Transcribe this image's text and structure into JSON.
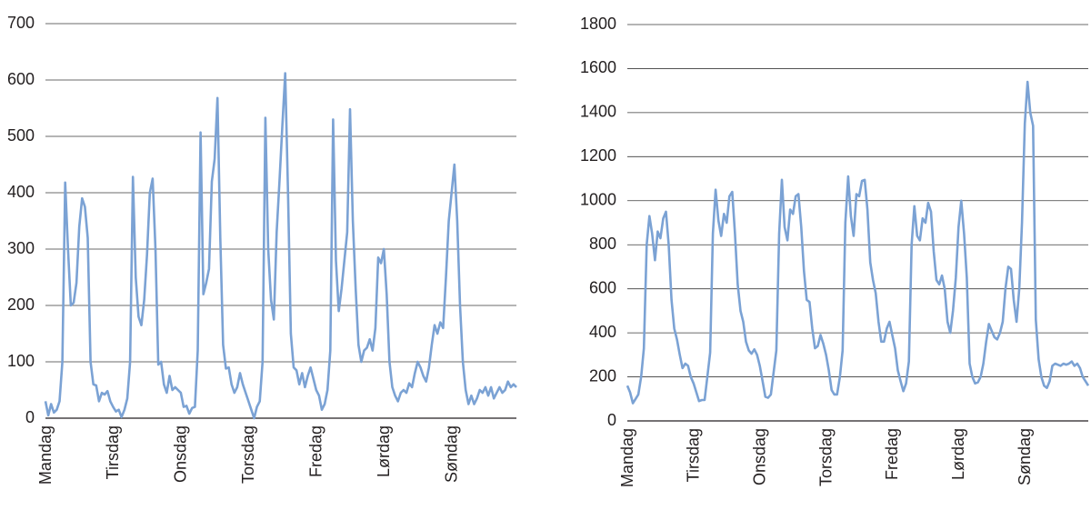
{
  "chart_data": [
    {
      "type": "line",
      "categories": [
        "Mandag",
        null,
        null,
        null,
        null,
        null,
        null,
        null,
        null,
        null,
        null,
        null,
        null,
        null,
        null,
        null,
        null,
        null,
        null,
        null,
        null,
        null,
        null,
        null,
        "Tirsdag",
        null,
        null,
        null,
        null,
        null,
        null,
        null,
        null,
        null,
        null,
        null,
        null,
        null,
        null,
        null,
        null,
        null,
        null,
        null,
        null,
        null,
        null,
        null,
        "Onsdag",
        null,
        null,
        null,
        null,
        null,
        null,
        null,
        null,
        null,
        null,
        null,
        null,
        null,
        null,
        null,
        null,
        null,
        null,
        null,
        null,
        null,
        null,
        null,
        "Torsdag",
        null,
        null,
        null,
        null,
        null,
        null,
        null,
        null,
        null,
        null,
        null,
        null,
        null,
        null,
        null,
        null,
        null,
        null,
        null,
        null,
        null,
        null,
        null,
        "Fredag",
        null,
        null,
        null,
        null,
        null,
        null,
        null,
        null,
        null,
        null,
        null,
        null,
        null,
        null,
        null,
        null,
        null,
        null,
        null,
        null,
        null,
        null,
        null,
        "Lørdag",
        null,
        null,
        null,
        null,
        null,
        null,
        null,
        null,
        null,
        null,
        null,
        null,
        null,
        null,
        null,
        null,
        null,
        null,
        null,
        null,
        null,
        null,
        null,
        "Søndag",
        null,
        null,
        null,
        null,
        null,
        null,
        null,
        null,
        null,
        null,
        null,
        null,
        null,
        null,
        null,
        null,
        null,
        null,
        null,
        null,
        null,
        null,
        null
      ],
      "values": [
        30,
        5,
        25,
        10,
        15,
        30,
        100,
        418,
        300,
        200,
        205,
        240,
        340,
        390,
        375,
        320,
        100,
        60,
        58,
        30,
        45,
        42,
        48,
        30,
        20,
        12,
        15,
        2,
        15,
        35,
        100,
        428,
        250,
        180,
        165,
        210,
        290,
        400,
        425,
        300,
        95,
        100,
        60,
        45,
        75,
        50,
        55,
        50,
        45,
        20,
        22,
        8,
        18,
        20,
        120,
        507,
        220,
        240,
        265,
        420,
        460,
        568,
        320,
        130,
        88,
        90,
        60,
        45,
        55,
        80,
        60,
        45,
        30,
        15,
        0,
        20,
        30,
        100,
        533,
        300,
        210,
        175,
        330,
        420,
        520,
        612,
        400,
        150,
        90,
        85,
        60,
        80,
        55,
        75,
        90,
        70,
        50,
        40,
        15,
        25,
        50,
        120,
        530,
        280,
        190,
        230,
        280,
        330,
        548,
        350,
        230,
        130,
        100,
        120,
        125,
        140,
        120,
        160,
        285,
        275,
        300,
        220,
        100,
        55,
        40,
        30,
        45,
        50,
        45,
        62,
        55,
        80,
        100,
        90,
        75,
        65,
        90,
        130,
        165,
        150,
        170,
        160,
        250,
        350,
        400,
        450,
        350,
        200,
        100,
        50,
        25,
        40,
        25,
        35,
        50,
        45,
        55,
        40,
        55,
        35,
        45,
        55,
        45,
        50,
        65,
        55,
        60,
        55
      ],
      "color": "#7ba2d4",
      "ylim": [
        0,
        700
      ],
      "yticks": [
        0,
        100,
        200,
        300,
        400,
        500,
        600,
        700
      ],
      "grid": true
    },
    {
      "type": "line",
      "categories": [
        "Mandag",
        null,
        null,
        null,
        null,
        null,
        null,
        null,
        null,
        null,
        null,
        null,
        null,
        null,
        null,
        null,
        null,
        null,
        null,
        null,
        null,
        null,
        null,
        null,
        "Tirsdag",
        null,
        null,
        null,
        null,
        null,
        null,
        null,
        null,
        null,
        null,
        null,
        null,
        null,
        null,
        null,
        null,
        null,
        null,
        null,
        null,
        null,
        null,
        null,
        "Onsdag",
        null,
        null,
        null,
        null,
        null,
        null,
        null,
        null,
        null,
        null,
        null,
        null,
        null,
        null,
        null,
        null,
        null,
        null,
        null,
        null,
        null,
        null,
        null,
        "Torsdag",
        null,
        null,
        null,
        null,
        null,
        null,
        null,
        null,
        null,
        null,
        null,
        null,
        null,
        null,
        null,
        null,
        null,
        null,
        null,
        null,
        null,
        null,
        null,
        "Fredag",
        null,
        null,
        null,
        null,
        null,
        null,
        null,
        null,
        null,
        null,
        null,
        null,
        null,
        null,
        null,
        null,
        null,
        null,
        null,
        null,
        null,
        null,
        null,
        "Lørdag",
        null,
        null,
        null,
        null,
        null,
        null,
        null,
        null,
        null,
        null,
        null,
        null,
        null,
        null,
        null,
        null,
        null,
        null,
        null,
        null,
        null,
        null,
        null,
        "Søndag",
        null,
        null,
        null,
        null,
        null,
        null,
        null,
        null,
        null,
        null,
        null,
        null,
        null,
        null,
        null,
        null,
        null,
        null,
        null,
        null,
        null,
        null,
        null
      ],
      "values": [
        160,
        130,
        80,
        100,
        120,
        200,
        330,
        800,
        930,
        850,
        730,
        860,
        830,
        920,
        950,
        800,
        550,
        420,
        370,
        300,
        240,
        260,
        250,
        200,
        170,
        130,
        90,
        95,
        95,
        200,
        310,
        850,
        1050,
        910,
        840,
        940,
        900,
        1020,
        1040,
        850,
        620,
        500,
        450,
        360,
        320,
        305,
        325,
        300,
        250,
        180,
        110,
        105,
        120,
        220,
        320,
        850,
        1095,
        880,
        820,
        960,
        940,
        1020,
        1030,
        880,
        680,
        550,
        540,
        420,
        330,
        340,
        390,
        350,
        300,
        230,
        140,
        120,
        120,
        200,
        320,
        900,
        1110,
        930,
        840,
        1030,
        1020,
        1090,
        1095,
        960,
        720,
        640,
        580,
        450,
        360,
        360,
        420,
        450,
        390,
        330,
        230,
        180,
        135,
        170,
        270,
        800,
        975,
        840,
        820,
        920,
        900,
        990,
        950,
        770,
        640,
        620,
        660,
        600,
        450,
        400,
        500,
        650,
        880,
        1000,
        850,
        650,
        260,
        200,
        170,
        175,
        200,
        260,
        360,
        440,
        410,
        380,
        370,
        400,
        450,
        600,
        700,
        690,
        550,
        450,
        600,
        900,
        1350,
        1540,
        1400,
        1340,
        460,
        280,
        200,
        160,
        150,
        180,
        250,
        260,
        255,
        250,
        260,
        255,
        260,
        270,
        250,
        260,
        240,
        200,
        180,
        160
      ],
      "color": "#7ba2d4",
      "ylim": [
        0,
        1800
      ],
      "yticks": [
        0,
        200,
        400,
        600,
        800,
        1000,
        1200,
        1400,
        1600,
        1800
      ],
      "grid": true
    }
  ]
}
